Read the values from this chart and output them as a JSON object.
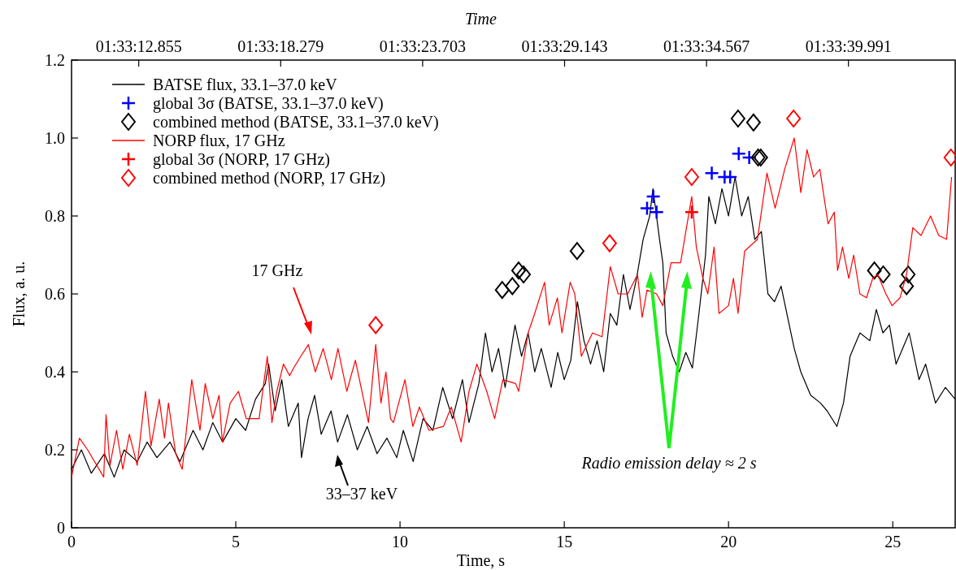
{
  "chart_data": {
    "type": "line",
    "x2label": "Time",
    "xlabel": "Time, s",
    "ylabel": "Flux, a. u.",
    "xlim": [
      0,
      26.9
    ],
    "xticks": [
      0,
      5,
      10,
      15,
      20,
      25
    ],
    "ylim": [
      0,
      1.2
    ],
    "yticks": [
      0,
      0.2,
      0.4,
      0.6,
      0.8,
      {
        "value": 1,
        "label": "1.0"
      },
      1.2
    ],
    "legend": "top left",
    "grid": false,
    "series": [
      {
        "name": "BATSE flux, 33.1–37.0 keV",
        "color": "#000000",
        "marker": "none",
        "line_style": "solid",
        "x": [
          0,
          0.3,
          0.6,
          1,
          1.3,
          1.6,
          2,
          2.3,
          2.6,
          3,
          3.3,
          3.7,
          4,
          4.3,
          4.6,
          5,
          5.3,
          5.6,
          5.9,
          6.0,
          6.2,
          6.4,
          6.6,
          6.9,
          7.0,
          7.2,
          7.4,
          7.6,
          7.9,
          8.1,
          8.4,
          8.7,
          9,
          9.3,
          9.6,
          9.9,
          10.1,
          10.4,
          10.7,
          11,
          11.3,
          11.6,
          11.9,
          12.1,
          12.4,
          12.6,
          12.8,
          13.0,
          13.2,
          13.5,
          13.7,
          13.9,
          14.1,
          14.3,
          14.6,
          14.8,
          15.0,
          15.2,
          15.4,
          15.6,
          15.8,
          16.0,
          16.2,
          16.4,
          16.6,
          16.8,
          17.0,
          17.2,
          17.4,
          17.6,
          17.7,
          17.9,
          18.0,
          18.1,
          18.3,
          18.5,
          18.7,
          18.9,
          19.1,
          19.3,
          19.4,
          19.6,
          19.8,
          20,
          20.2,
          20.4,
          20.6,
          20.8,
          21.0,
          21.2,
          21.4,
          21.6,
          21.8,
          22.0,
          22.2,
          22.5,
          22.8,
          23.0,
          23.3,
          23.5,
          23.7,
          24,
          24.3,
          24.5,
          24.7,
          24.9,
          25.1,
          25.3,
          25.5,
          25.8,
          26,
          26.3,
          26.6,
          26.9
        ],
        "values": [
          0.15,
          0.2,
          0.14,
          0.19,
          0.13,
          0.2,
          0.17,
          0.22,
          0.18,
          0.22,
          0.17,
          0.25,
          0.2,
          0.27,
          0.22,
          0.28,
          0.25,
          0.33,
          0.37,
          0.42,
          0.3,
          0.38,
          0.26,
          0.32,
          0.18,
          0.28,
          0.34,
          0.24,
          0.3,
          0.22,
          0.29,
          0.2,
          0.26,
          0.19,
          0.23,
          0.18,
          0.25,
          0.17,
          0.28,
          0.25,
          0.36,
          0.28,
          0.38,
          0.27,
          0.37,
          0.5,
          0.4,
          0.46,
          0.36,
          0.52,
          0.44,
          0.5,
          0.4,
          0.46,
          0.36,
          0.45,
          0.38,
          0.43,
          0.58,
          0.48,
          0.42,
          0.48,
          0.4,
          0.55,
          0.52,
          0.65,
          0.56,
          0.64,
          0.74,
          0.8,
          0.87,
          0.74,
          0.68,
          0.5,
          0.44,
          0.4,
          0.45,
          0.41,
          0.55,
          0.7,
          0.85,
          0.78,
          0.87,
          0.8,
          0.9,
          0.8,
          0.85,
          0.74,
          0.76,
          0.6,
          0.58,
          0.62,
          0.54,
          0.46,
          0.4,
          0.34,
          0.32,
          0.3,
          0.26,
          0.32,
          0.44,
          0.5,
          0.48,
          0.56,
          0.5,
          0.52,
          0.42,
          0.46,
          0.5,
          0.38,
          0.42,
          0.32,
          0.36,
          0.33
        ]
      },
      {
        "name": "global 3σ (BATSE, 33.1–37.0 keV)",
        "type": "scatter",
        "color": "#0000ff",
        "marker": "cross",
        "x": [
          17.52,
          17.71,
          17.81,
          19.49,
          19.88,
          20.05,
          20.31,
          20.63
        ],
        "values": [
          0.82,
          0.85,
          0.81,
          0.91,
          0.9,
          0.9,
          0.96,
          0.95
        ]
      },
      {
        "name": "combined method (BATSE, 33.1–37.0 keV)",
        "type": "scatter",
        "color": "#000000",
        "marker": "diamond",
        "x": [
          13.11,
          13.42,
          13.61,
          13.76,
          15.39,
          20.29,
          20.76,
          20.9,
          20.98,
          24.44,
          24.71,
          25.42,
          25.47
        ],
        "values": [
          0.61,
          0.62,
          0.66,
          0.65,
          0.71,
          1.05,
          1.04,
          0.95,
          0.95,
          0.66,
          0.65,
          0.62,
          0.65
        ]
      },
      {
        "name": "NORP flux, 17 GHz",
        "color": "#ff0000",
        "marker": "none",
        "line_style": "solid",
        "x": [
          0,
          0.24,
          0.49,
          0.98,
          1.05,
          1.17,
          1.37,
          1.56,
          1.76,
          2.0,
          2.25,
          2.42,
          2.67,
          2.83,
          2.95,
          3.17,
          3.37,
          3.66,
          3.91,
          4.07,
          4.3,
          4.49,
          4.59,
          4.83,
          5.08,
          5.32,
          5.71,
          5.96,
          6.1,
          6.25,
          6.45,
          6.64,
          6.76,
          6.98,
          7.21,
          7.42,
          7.66,
          7.91,
          8.11,
          8.38,
          8.64,
          9.04,
          9.26,
          9.42,
          9.57,
          9.71,
          9.8,
          10.15,
          10.39,
          10.59,
          10.88,
          11.32,
          11.56,
          11.86,
          12.1,
          12.34,
          12.64,
          12.88,
          13.13,
          13.52,
          13.61,
          13.9,
          14.1,
          14.4,
          14.54,
          14.79,
          14.93,
          15.18,
          15.32,
          15.52,
          15.86,
          16.15,
          16.4,
          16.64,
          16.93,
          17.23,
          17.37,
          17.52,
          17.81,
          18.0,
          18.25,
          18.54,
          18.88,
          19.02,
          19.22,
          19.37,
          19.56,
          19.71,
          20.0,
          20.15,
          20.29,
          20.49,
          20.88,
          21.17,
          21.42,
          21.71,
          22.0,
          22.2,
          22.39,
          22.59,
          22.78,
          23.03,
          23.22,
          23.32,
          23.47,
          23.66,
          23.81,
          24.0,
          24.2,
          24.39,
          24.54,
          24.79,
          24.98,
          25.22,
          25.42,
          25.61,
          25.86,
          26.15,
          26.4,
          26.64,
          26.79
        ],
        "values": [
          0.13,
          0.23,
          0.2,
          0.13,
          0.29,
          0.16,
          0.25,
          0.15,
          0.24,
          0.16,
          0.35,
          0.21,
          0.33,
          0.23,
          0.32,
          0.19,
          0.15,
          0.38,
          0.25,
          0.37,
          0.28,
          0.34,
          0.22,
          0.32,
          0.35,
          0.28,
          0.28,
          0.44,
          0.27,
          0.35,
          0.42,
          0.39,
          0.41,
          0.44,
          0.47,
          0.4,
          0.46,
          0.38,
          0.46,
          0.35,
          0.43,
          0.27,
          0.47,
          0.32,
          0.4,
          0.28,
          0.27,
          0.38,
          0.26,
          0.31,
          0.25,
          0.26,
          0.31,
          0.22,
          0.35,
          0.42,
          0.35,
          0.28,
          0.38,
          0.37,
          0.35,
          0.5,
          0.55,
          0.63,
          0.52,
          0.59,
          0.5,
          0.63,
          0.6,
          0.44,
          0.5,
          0.49,
          0.67,
          0.6,
          0.6,
          0.65,
          0.54,
          0.61,
          0.6,
          0.57,
          0.68,
          0.68,
          0.85,
          0.72,
          0.64,
          0.6,
          0.72,
          0.55,
          0.57,
          0.64,
          0.55,
          0.71,
          0.74,
          0.91,
          0.82,
          0.92,
          1.0,
          0.86,
          0.97,
          0.9,
          0.92,
          0.78,
          0.81,
          0.66,
          0.72,
          0.64,
          0.7,
          0.6,
          0.59,
          0.64,
          0.65,
          0.6,
          0.57,
          0.59,
          0.65,
          0.77,
          0.75,
          0.8,
          0.75,
          0.74,
          0.9
        ]
      },
      {
        "name": "global 3σ (NORP, 17 GHz)",
        "type": "scatter",
        "color": "#ff0000",
        "marker": "cross",
        "x": [
          18.88
        ],
        "values": [
          0.81
        ]
      },
      {
        "name": "combined method (NORP, 17 GHz)",
        "type": "scatter",
        "color": "#ff0000",
        "marker": "diamond",
        "x": [
          9.26,
          16.38,
          18.88,
          21.98,
          26.77
        ],
        "values": [
          0.52,
          0.73,
          0.9,
          1.05,
          0.95
        ]
      }
    ],
    "annotations": [
      "17 GHz",
      "33–37 keV",
      "Radio emission delay ≈ 2 s",
      "01:33:12.855",
      "01:33:18.279",
      "01:33:23.703",
      "01:33:29.143",
      "01:33:34.567",
      "01:33:39.991"
    ]
  }
}
